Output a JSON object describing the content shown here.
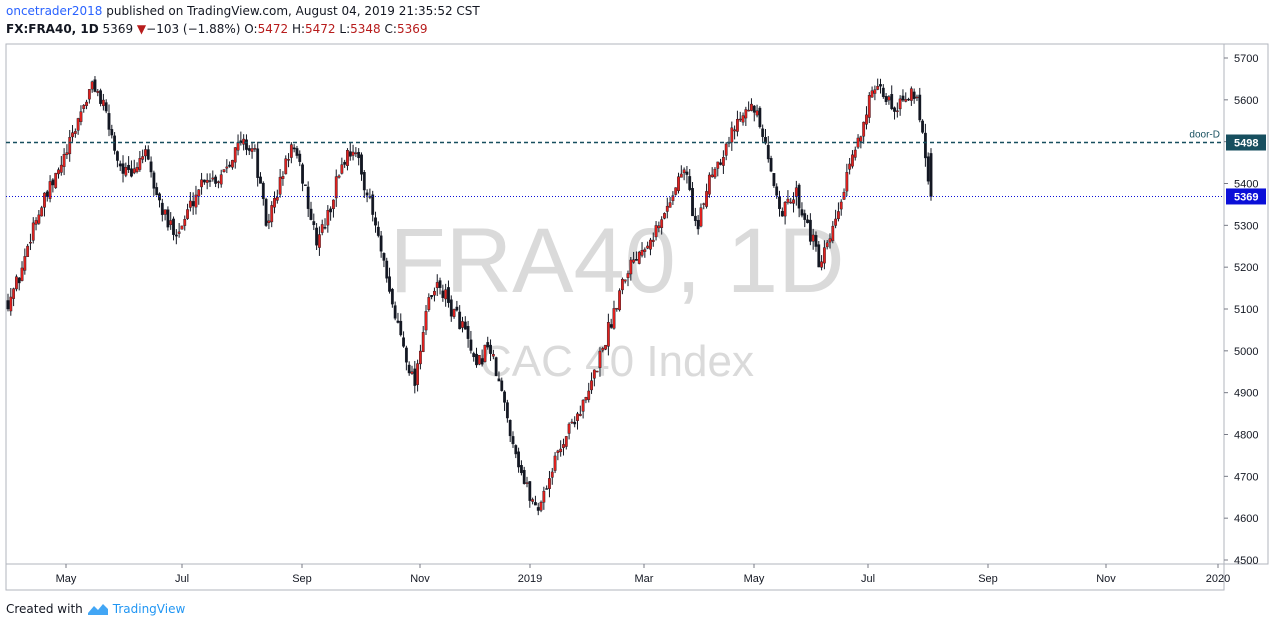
{
  "header": {
    "author": "oncetrader2018",
    "published_text": "published on TradingView.com, August 04, 2019 21:35:52 CST",
    "symbol": "FX:FRA40, 1D",
    "last": "5369",
    "change_arrow": "▼",
    "change": "−103 (−1.88%)",
    "o_label": "O:",
    "o_val": "5472",
    "h_label": "H:",
    "h_val": "5472",
    "l_label": "L:",
    "l_val": "5348",
    "c_label": "C:",
    "c_val": "5369"
  },
  "footer": {
    "created_with": "Created with",
    "brand": "TradingView"
  },
  "colors": {
    "up": "#e0211e",
    "down": "#131722",
    "level": "#174f5f",
    "last": "#0b0fd8",
    "watermark": "#d9d9d9"
  },
  "chart_data": {
    "type": "candlestick",
    "watermark": [
      "FRA40, 1D",
      "CAC 40 Index"
    ],
    "ylim": [
      4500,
      5700
    ],
    "y_ticks": [
      4500,
      4600,
      4700,
      4800,
      4900,
      5000,
      5100,
      5200,
      5300,
      5400,
      5500,
      5600,
      5700
    ],
    "x_ticks": [
      "May",
      "Jul",
      "Sep",
      "Nov",
      "2019",
      "Mar",
      "May",
      "Jul",
      "Sep",
      "Nov",
      "2020"
    ],
    "horizontal_level": {
      "label": "door-D",
      "value": 5498,
      "value_label": "5498"
    },
    "last_price": {
      "value": 5369,
      "value_label": "5369"
    },
    "close_path": [
      5120,
      5180,
      5300,
      5360,
      5420,
      5490,
      5580,
      5640,
      5560,
      5450,
      5410,
      5480,
      5380,
      5300,
      5290,
      5360,
      5420,
      5410,
      5460,
      5500,
      5480,
      5300,
      5390,
      5490,
      5410,
      5260,
      5320,
      5440,
      5490,
      5400,
      5280,
      5130,
      5030,
      4920,
      5100,
      5160,
      5100,
      5060,
      4950,
      5020,
      4910,
      4790,
      4680,
      4620,
      4700,
      4780,
      4840,
      4880,
      4980,
      5070,
      5180,
      5230,
      5270,
      5300,
      5380,
      5440,
      5280,
      5420,
      5470,
      5530,
      5600,
      5550,
      5420,
      5330,
      5380,
      5300,
      5200,
      5280,
      5390,
      5500,
      5600,
      5620,
      5580,
      5620,
      5590,
      5369
    ]
  }
}
